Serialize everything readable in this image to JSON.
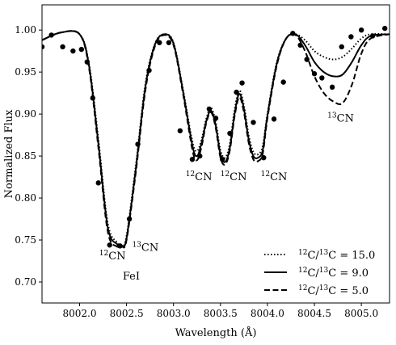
{
  "chart_data": {
    "type": "line",
    "title": "",
    "xlabel": "Wavelength (Å)",
    "ylabel": "Normalized Flux",
    "xlim": [
      8001.6,
      8005.3
    ],
    "ylim": [
      0.675,
      1.03
    ],
    "x_ticks": [
      8002.0,
      8002.5,
      8003.0,
      8003.5,
      8004.0,
      8004.5,
      8005.0
    ],
    "x_tick_labels": [
      "8002.0",
      "8002.5",
      "8003.0",
      "8003.5",
      "8004.0",
      "8004.5",
      "8005.0"
    ],
    "y_ticks": [
      0.7,
      0.75,
      0.8,
      0.85,
      0.9,
      0.95,
      1.0
    ],
    "y_tick_labels": [
      "0.70",
      "0.75",
      "0.80",
      "0.85",
      "0.90",
      "0.95",
      "1.00"
    ],
    "grid": false,
    "legend_position": "lower-right",
    "series": [
      {
        "name": "12C/13C = 15.0",
        "legend": {
          "iso1": "12",
          "mid": "C/",
          "iso2": "13",
          "tail": "C = 15.0"
        },
        "style": "dotted",
        "x": [
          8001.6,
          8001.8,
          8002.0,
          8002.1,
          8002.2,
          8002.3,
          8002.4,
          8002.45,
          8002.5,
          8002.6,
          8002.7,
          8002.8,
          8002.9,
          8003.0,
          8003.1,
          8003.2,
          8003.25,
          8003.3,
          8003.35,
          8003.4,
          8003.45,
          8003.5,
          8003.55,
          8003.6,
          8003.65,
          8003.7,
          8003.75,
          8003.8,
          8003.85,
          8003.9,
          8003.95,
          8004.0,
          8004.1,
          8004.2,
          8004.3,
          8004.4,
          8004.5,
          8004.6,
          8004.7,
          8004.8,
          8004.9,
          8005.0,
          8005.1,
          8005.3
        ],
        "y": [
          0.988,
          0.997,
          0.995,
          0.96,
          0.87,
          0.77,
          0.747,
          0.744,
          0.755,
          0.84,
          0.935,
          0.983,
          0.995,
          0.985,
          0.93,
          0.868,
          0.856,
          0.87,
          0.895,
          0.907,
          0.89,
          0.857,
          0.848,
          0.865,
          0.905,
          0.928,
          0.91,
          0.875,
          0.855,
          0.852,
          0.862,
          0.9,
          0.962,
          0.99,
          0.995,
          0.988,
          0.975,
          0.968,
          0.965,
          0.968,
          0.978,
          0.99,
          0.995,
          0.995
        ]
      },
      {
        "name": "12C/13C = 9.0",
        "legend": {
          "iso1": "12",
          "mid": "C/",
          "iso2": "13",
          "tail": "C = 9.0"
        },
        "style": "solid",
        "x": [
          8001.6,
          8001.8,
          8002.0,
          8002.1,
          8002.2,
          8002.3,
          8002.4,
          8002.45,
          8002.5,
          8002.6,
          8002.7,
          8002.8,
          8002.9,
          8003.0,
          8003.1,
          8003.2,
          8003.25,
          8003.3,
          8003.35,
          8003.4,
          8003.45,
          8003.5,
          8003.55,
          8003.6,
          8003.65,
          8003.7,
          8003.75,
          8003.8,
          8003.85,
          8003.9,
          8003.95,
          8004.0,
          8004.1,
          8004.2,
          8004.3,
          8004.4,
          8004.5,
          8004.6,
          8004.7,
          8004.8,
          8004.9,
          8005.0,
          8005.1,
          8005.3
        ],
        "y": [
          0.988,
          0.997,
          0.995,
          0.958,
          0.865,
          0.765,
          0.745,
          0.743,
          0.752,
          0.836,
          0.932,
          0.982,
          0.995,
          0.984,
          0.928,
          0.863,
          0.85,
          0.866,
          0.892,
          0.904,
          0.886,
          0.852,
          0.843,
          0.86,
          0.9,
          0.924,
          0.906,
          0.87,
          0.85,
          0.848,
          0.857,
          0.898,
          0.96,
          0.99,
          0.995,
          0.982,
          0.962,
          0.95,
          0.945,
          0.947,
          0.962,
          0.982,
          0.993,
          0.995
        ]
      },
      {
        "name": "12C/13C = 5.0",
        "legend": {
          "iso1": "12",
          "mid": "C/",
          "iso2": "13",
          "tail": "C = 5.0"
        },
        "style": "dashed",
        "x": [
          8001.6,
          8001.8,
          8002.0,
          8002.1,
          8002.2,
          8002.3,
          8002.4,
          8002.45,
          8002.5,
          8002.6,
          8002.7,
          8002.8,
          8002.9,
          8003.0,
          8003.1,
          8003.2,
          8003.25,
          8003.3,
          8003.35,
          8003.4,
          8003.45,
          8003.5,
          8003.55,
          8003.6,
          8003.65,
          8003.7,
          8003.75,
          8003.8,
          8003.85,
          8003.9,
          8003.95,
          8004.0,
          8004.1,
          8004.2,
          8004.3,
          8004.4,
          8004.5,
          8004.6,
          8004.7,
          8004.8,
          8004.9,
          8005.0,
          8005.1,
          8005.3
        ],
        "y": [
          0.988,
          0.997,
          0.995,
          0.955,
          0.86,
          0.76,
          0.742,
          0.742,
          0.75,
          0.832,
          0.928,
          0.98,
          0.994,
          0.982,
          0.925,
          0.858,
          0.845,
          0.862,
          0.89,
          0.902,
          0.883,
          0.848,
          0.84,
          0.857,
          0.897,
          0.92,
          0.902,
          0.866,
          0.846,
          0.844,
          0.853,
          0.895,
          0.958,
          0.99,
          0.994,
          0.975,
          0.945,
          0.925,
          0.915,
          0.913,
          0.935,
          0.972,
          0.99,
          0.995
        ]
      }
    ],
    "observed_points": {
      "x": [
        8001.6,
        8001.7,
        8001.82,
        8001.93,
        8002.02,
        8002.08,
        8002.14,
        8002.2,
        8002.32,
        8002.43,
        8002.53,
        8002.62,
        8002.74,
        8002.85,
        8002.95,
        8003.07,
        8003.2,
        8003.28,
        8003.38,
        8003.45,
        8003.52,
        8003.6,
        8003.67,
        8003.73,
        8003.85,
        8003.96,
        8004.07,
        8004.17,
        8004.27,
        8004.35,
        8004.42,
        8004.5,
        8004.58,
        8004.69,
        8004.79,
        8004.89,
        8005.0,
        8005.12,
        8005.25
      ],
      "y": [
        0.98,
        0.994,
        0.98,
        0.975,
        0.977,
        0.962,
        0.919,
        0.818,
        0.744,
        0.743,
        0.775,
        0.864,
        0.952,
        0.985,
        0.985,
        0.88,
        0.846,
        0.85,
        0.906,
        0.895,
        0.846,
        0.877,
        0.926,
        0.937,
        0.89,
        0.848,
        0.894,
        0.938,
        0.996,
        0.982,
        0.965,
        0.948,
        0.943,
        0.932,
        0.98,
        0.992,
        1.0,
        0.993,
        1.002
      ]
    },
    "annotations": [
      {
        "iso": "12",
        "text": "CN",
        "x": 8002.35,
        "y": 0.727
      },
      {
        "iso": "13",
        "text": "CN",
        "x": 8002.7,
        "y": 0.737
      },
      {
        "iso": "",
        "text": "FeI",
        "x": 8002.55,
        "y": 0.703
      },
      {
        "iso": "12",
        "text": "CN",
        "x": 8003.27,
        "y": 0.821
      },
      {
        "iso": "12",
        "text": "CN",
        "x": 8003.64,
        "y": 0.821
      },
      {
        "iso": "12",
        "text": "CN",
        "x": 8004.07,
        "y": 0.821
      },
      {
        "iso": "13",
        "text": "CN",
        "x": 8004.78,
        "y": 0.891
      }
    ]
  }
}
